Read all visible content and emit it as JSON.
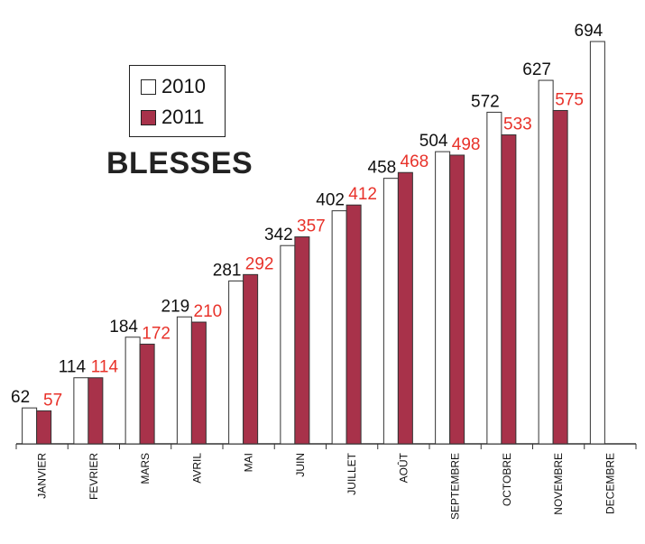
{
  "chart_data": {
    "type": "bar",
    "title": "BLESSES",
    "categories": [
      "JANVIER",
      "FEVRIER",
      "MARS",
      "AVRIL",
      "MAI",
      "JUIN",
      "JUILLET",
      "AOÛT",
      "SEPTEMBRE",
      "OCTOBRE",
      "NOVEMBRE",
      "DECEMBRE"
    ],
    "series": [
      {
        "name": "2010",
        "values": [
          62,
          114,
          184,
          219,
          281,
          342,
          402,
          458,
          504,
          572,
          627,
          694
        ],
        "color": "#ffffff",
        "label_color": "#111111"
      },
      {
        "name": "2011",
        "values": [
          57,
          114,
          172,
          210,
          292,
          357,
          412,
          468,
          498,
          533,
          575,
          null
        ],
        "color": "#a8324a",
        "label_color": "#e8322a"
      }
    ],
    "ylim": [
      0,
      694
    ],
    "legend": "top-left",
    "grid": false
  }
}
